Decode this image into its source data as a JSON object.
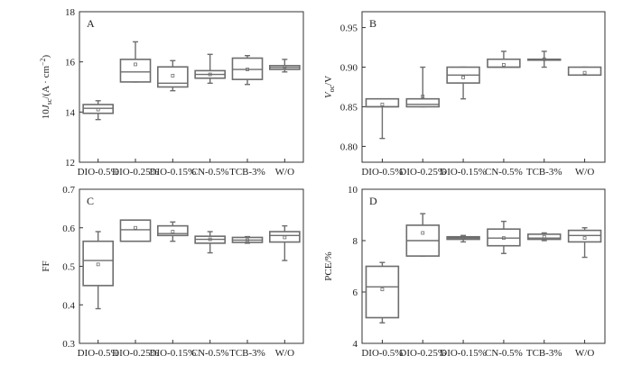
{
  "chart_data": [
    {
      "type": "box",
      "panel_label": "A",
      "ylabel_parts": [
        "10",
        "J",
        "sc",
        "/(A · cm",
        "−2",
        ")"
      ],
      "ylim": [
        12,
        18
      ],
      "yticks": [
        12,
        14,
        16,
        18
      ],
      "categories": [
        "DIO-0.5%",
        "DIO-0.25%",
        "DIO-0.15%",
        "CN-0.5%",
        "TCB-3%",
        "W/O"
      ],
      "boxes": [
        {
          "whisker_low": 13.7,
          "q1": 13.95,
          "median": 14.15,
          "q3": 14.3,
          "whisker_high": 14.45,
          "mean": 14.1
        },
        {
          "whisker_low": 15.2,
          "q1": 15.2,
          "median": 15.6,
          "q3": 16.1,
          "whisker_high": 16.8,
          "mean": 15.9
        },
        {
          "whisker_low": 14.85,
          "q1": 15.0,
          "median": 15.15,
          "q3": 15.8,
          "whisker_high": 16.05,
          "mean": 15.45
        },
        {
          "whisker_low": 15.15,
          "q1": 15.35,
          "median": 15.5,
          "q3": 15.65,
          "whisker_high": 16.3,
          "mean": 15.5
        },
        {
          "whisker_low": 15.1,
          "q1": 15.3,
          "median": 15.7,
          "q3": 16.15,
          "whisker_high": 16.25,
          "mean": 15.7
        },
        {
          "whisker_low": 15.6,
          "q1": 15.7,
          "median": 15.78,
          "q3": 15.85,
          "whisker_high": 16.1,
          "mean": 15.8
        }
      ]
    },
    {
      "type": "box",
      "panel_label": "B",
      "ylabel_parts": [
        "V",
        "oc",
        "/V"
      ],
      "ylim": [
        0.78,
        0.97
      ],
      "yticks": [
        0.8,
        0.85,
        0.9,
        0.95
      ],
      "categories": [
        "DIO-0.5%",
        "DIO-0.25%",
        "DIO-0.15%",
        "CN-0.5%",
        "TCB-3%",
        "W/O"
      ],
      "boxes": [
        {
          "whisker_low": 0.81,
          "q1": 0.85,
          "median": 0.85,
          "q3": 0.86,
          "whisker_high": 0.86,
          "mean": 0.853
        },
        {
          "whisker_low": 0.85,
          "q1": 0.85,
          "median": 0.853,
          "q3": 0.86,
          "whisker_high": 0.9,
          "mean": 0.863
        },
        {
          "whisker_low": 0.86,
          "q1": 0.88,
          "median": 0.89,
          "q3": 0.9,
          "whisker_high": 0.9,
          "mean": 0.887
        },
        {
          "whisker_low": 0.9,
          "q1": 0.9,
          "median": 0.9,
          "q3": 0.91,
          "whisker_high": 0.92,
          "mean": 0.903
        },
        {
          "whisker_low": 0.9,
          "q1": 0.91,
          "median": 0.91,
          "q3": 0.91,
          "whisker_high": 0.92,
          "mean": 0.91
        },
        {
          "whisker_low": 0.89,
          "q1": 0.89,
          "median": 0.89,
          "q3": 0.9,
          "whisker_high": 0.9,
          "mean": 0.893
        }
      ]
    },
    {
      "type": "box",
      "panel_label": "C",
      "ylabel_parts": [
        "FF"
      ],
      "ylim": [
        0.3,
        0.7
      ],
      "yticks": [
        0.3,
        0.4,
        0.5,
        0.6,
        0.7
      ],
      "categories": [
        "DIO-0.5%",
        "DIO-0.25%",
        "DIO-0.15%",
        "CN-0.5%",
        "TCB-3%",
        "W/O"
      ],
      "boxes": [
        {
          "whisker_low": 0.39,
          "q1": 0.45,
          "median": 0.515,
          "q3": 0.565,
          "whisker_high": 0.59,
          "mean": 0.505
        },
        {
          "whisker_low": 0.565,
          "q1": 0.565,
          "median": 0.595,
          "q3": 0.62,
          "whisker_high": 0.62,
          "mean": 0.6
        },
        {
          "whisker_low": 0.565,
          "q1": 0.58,
          "median": 0.585,
          "q3": 0.605,
          "whisker_high": 0.615,
          "mean": 0.59
        },
        {
          "whisker_low": 0.535,
          "q1": 0.56,
          "median": 0.57,
          "q3": 0.578,
          "whisker_high": 0.59,
          "mean": 0.57
        },
        {
          "whisker_low": 0.56,
          "q1": 0.562,
          "median": 0.568,
          "q3": 0.575,
          "whisker_high": 0.577,
          "mean": 0.568
        },
        {
          "whisker_low": 0.515,
          "q1": 0.563,
          "median": 0.58,
          "q3": 0.59,
          "whisker_high": 0.605,
          "mean": 0.575
        }
      ]
    },
    {
      "type": "box",
      "panel_label": "D",
      "ylabel_parts": [
        "PCE/%"
      ],
      "ylim": [
        4,
        10
      ],
      "yticks": [
        4,
        6,
        8,
        10
      ],
      "categories": [
        "DIO-0.5%",
        "DIO-0.25%",
        "DIO-0.15%",
        "CN-0.5%",
        "TCB-3%",
        "W/O"
      ],
      "boxes": [
        {
          "whisker_low": 4.8,
          "q1": 5.0,
          "median": 6.2,
          "q3": 7.0,
          "whisker_high": 7.15,
          "mean": 6.1
        },
        {
          "whisker_low": 7.4,
          "q1": 7.4,
          "median": 8.0,
          "q3": 8.6,
          "whisker_high": 9.05,
          "mean": 8.3
        },
        {
          "whisker_low": 7.95,
          "q1": 8.05,
          "median": 8.1,
          "q3": 8.15,
          "whisker_high": 8.2,
          "mean": 8.1
        },
        {
          "whisker_low": 7.5,
          "q1": 7.8,
          "median": 8.1,
          "q3": 8.45,
          "whisker_high": 8.75,
          "mean": 8.1
        },
        {
          "whisker_low": 8.0,
          "q1": 8.05,
          "median": 8.1,
          "q3": 8.25,
          "whisker_high": 8.3,
          "mean": 8.15
        },
        {
          "whisker_low": 7.35,
          "q1": 7.95,
          "median": 8.2,
          "q3": 8.4,
          "whisker_high": 8.5,
          "mean": 8.1
        }
      ]
    }
  ]
}
